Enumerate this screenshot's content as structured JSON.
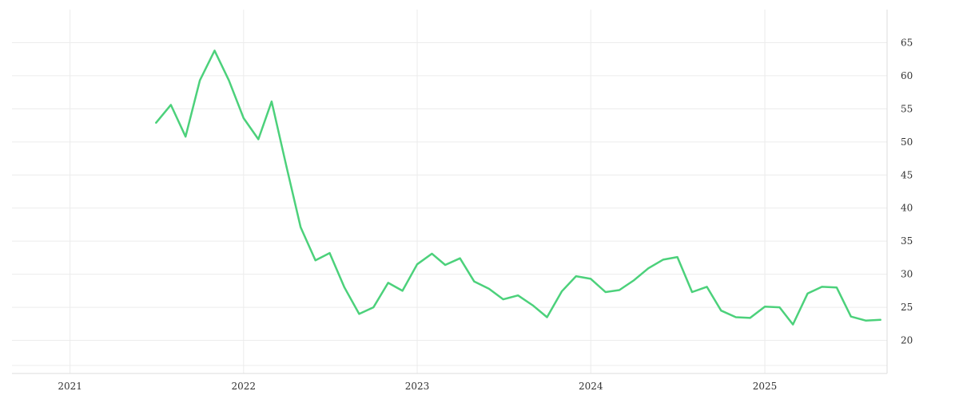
{
  "chart_data": {
    "type": "line",
    "title": "",
    "xlabel": "",
    "ylabel": "",
    "x_ticks": [
      "2021",
      "2022",
      "2023",
      "2024",
      "2025"
    ],
    "y_ticks": [
      20,
      25,
      30,
      35,
      40,
      45,
      50,
      55,
      60,
      65
    ],
    "xlim": [
      "2020-09-01",
      "2025-09-15"
    ],
    "ylim": [
      15,
      70
    ],
    "grid": true,
    "y_axis_position": "right",
    "line_color": "#4cd17b",
    "series": [
      {
        "x": [
          "2021-07-01",
          "2021-08-01",
          "2021-09-01",
          "2021-10-01",
          "2021-11-01",
          "2021-12-01",
          "2022-01-01",
          "2022-02-01",
          "2022-03-01",
          "2022-04-01",
          "2022-05-01",
          "2022-06-01",
          "2022-07-01",
          "2022-08-01",
          "2022-09-01",
          "2022-10-01",
          "2022-11-01",
          "2022-12-01",
          "2023-01-01",
          "2023-02-01",
          "2023-03-01",
          "2023-04-01",
          "2023-05-01",
          "2023-06-01",
          "2023-07-01",
          "2023-08-01",
          "2023-09-01",
          "2023-10-01",
          "2023-11-01",
          "2023-12-01",
          "2024-01-01",
          "2024-02-01",
          "2024-03-01",
          "2024-04-01",
          "2024-05-01",
          "2024-06-01",
          "2024-07-01",
          "2024-08-01",
          "2024-09-01",
          "2024-10-01",
          "2024-11-01",
          "2024-12-01",
          "2025-01-01",
          "2025-02-01",
          "2025-03-01",
          "2025-04-01",
          "2025-05-01",
          "2025-06-01",
          "2025-07-01",
          "2025-08-01",
          "2025-09-01"
        ],
        "values": [
          52.9,
          55.6,
          50.8,
          59.3,
          63.8,
          59.3,
          53.6,
          50.4,
          56.1,
          46.3,
          37.1,
          32.1,
          33.2,
          28.0,
          24.0,
          25.0,
          28.7,
          27.5,
          31.5,
          33.1,
          31.4,
          32.4,
          28.9,
          27.8,
          26.2,
          26.8,
          25.3,
          23.5,
          27.4,
          29.7,
          29.3,
          27.3,
          27.6,
          29.1,
          30.9,
          32.2,
          32.6,
          27.3,
          28.1,
          24.5,
          23.5,
          23.4,
          25.1,
          25.0,
          22.4,
          27.1,
          28.1,
          28.0,
          23.6,
          23.0,
          23.1
        ]
      }
    ]
  }
}
